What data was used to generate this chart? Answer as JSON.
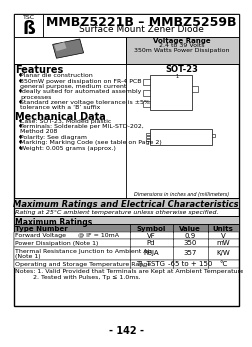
{
  "title": "MMBZ5221B – MMBZ5259B",
  "subtitle": "Surface Mount Zener Diode",
  "voltage_range": "Voltage Range",
  "voltage_vals": "2.4 to 39 Volts",
  "power_diss": "350m Watts Power Dissipation",
  "package": "SOT-23",
  "features_title": "Features",
  "features": [
    "Planar die construction",
    "350mW power dissipation on FR-4 PCB",
    "general purpose, medium current",
    "Ideally suited for automated assembly",
    "processes",
    "Standard zener voltage tolerance is ±5%",
    "tolerance with a ‘B’ suffix"
  ],
  "mech_title": "Mechanical Data",
  "mech_data": [
    [
      "Case: SOT-23, Molded plastic"
    ],
    [
      "Terminals: Solderable per MIL-STD-202,",
      "Method 208"
    ],
    [
      "Polarity: See diagram"
    ],
    [
      "Marking: Marking Code (see table on Page 2)"
    ],
    [
      "Weight: 0.005 grams (approx.)"
    ]
  ],
  "max_title": "Maximum Ratings and Electrical Characteristics",
  "max_subtitle": "Rating at 25°C ambient temperature unless otherwise specified.",
  "max_ratings_label": "Maximum Ratings",
  "col_headers": [
    "Type Number",
    "Symbol",
    "Value",
    "Units"
  ],
  "table_rows": [
    [
      "Forward Voltage      @ IF = 10mA",
      "VF",
      "0.9",
      "V"
    ],
    [
      "Power Dissipation (Note 1)",
      "Pd",
      "350",
      "mW"
    ],
    [
      "Thermal Resistance Junction to Ambient Air\n(Note 1)",
      "RθJA",
      "357",
      "K/W"
    ],
    [
      "Operating and Storage Temperature Range",
      "TJ, TSTG",
      "-65 to + 150",
      "°C"
    ]
  ],
  "notes_line1": "Notes: 1. Valid Provided that Terminals are Kept at Ambient Temperature.",
  "notes_line2": "         2. Tested with Pulses, Tp ≤ 1.0ms.",
  "page_num": "- 142 -",
  "bg_color": "#ffffff",
  "gray_light": "#c8c8c8",
  "gray_mid": "#aaaaaa",
  "gray_dark": "#888888",
  "black": "#000000"
}
